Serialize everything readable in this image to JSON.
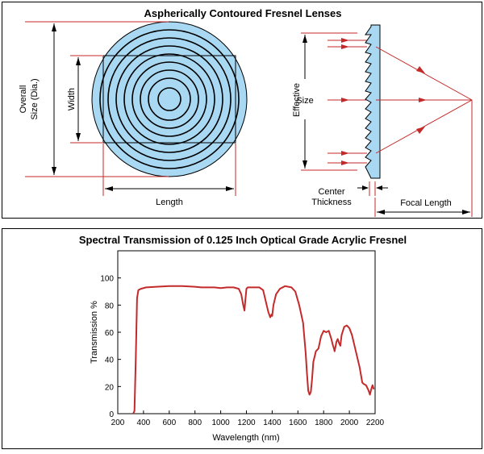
{
  "top": {
    "title": "Aspherically Contoured Fresnel Lenses",
    "labels": {
      "overall_size_line1": "Overall",
      "overall_size_line2": "Size  (Dia.)",
      "width": "Width",
      "length": "Length",
      "effective_line1": "Effective",
      "effective_line2": "Size",
      "center_line1": "Center",
      "center_line2": "Thickness",
      "focal_length": "Focal Length"
    },
    "colors": {
      "lens_fill": "#a9d8f2",
      "ring_stroke": "#000000",
      "dimension_red": "#c42a2a",
      "ray_red": "#c42a2a"
    }
  },
  "bottom": {
    "title": "Spectral Transmission of 0.125 Inch Optical Grade Acrylic Fresnel"
  },
  "chart_data": {
    "type": "line",
    "title": "Spectral Transmission of 0.125 Inch Optical Grade Acrylic Fresnel",
    "xlabel": "Wavelength (nm)",
    "ylabel": "Transmission %",
    "xlim": [
      200,
      2200
    ],
    "ylim": [
      0,
      120
    ],
    "xticks": [
      200,
      400,
      600,
      800,
      1000,
      1200,
      1400,
      1600,
      1800,
      2000,
      2200
    ],
    "yticks": [
      0,
      20,
      40,
      60,
      80,
      100
    ],
    "grid": false,
    "color": "#c42a2a",
    "series": [
      {
        "x": [
          320,
          330,
          340,
          350,
          360,
          380,
          420,
          500,
          600,
          700,
          800,
          850,
          900,
          950,
          1000,
          1050,
          1100,
          1140,
          1160,
          1175,
          1185,
          1190,
          1200,
          1210,
          1230,
          1260,
          1300,
          1330,
          1350,
          1370,
          1385,
          1395,
          1400,
          1410,
          1430,
          1460,
          1500,
          1550,
          1580,
          1610,
          1640,
          1660,
          1670,
          1680,
          1690,
          1700,
          1710,
          1720,
          1740,
          1760,
          1780,
          1800,
          1820,
          1840,
          1860,
          1870,
          1880,
          1885,
          1900,
          1910,
          1920,
          1930,
          1940,
          1960,
          1980,
          2000,
          2020,
          2040,
          2060,
          2080,
          2100,
          2110,
          2130,
          2150,
          2160,
          2170,
          2180,
          2190
        ],
        "y": [
          0,
          2,
          40,
          85,
          91,
          92,
          93,
          93.5,
          94,
          94,
          93.5,
          93,
          93,
          93,
          92.5,
          93,
          93,
          92,
          88,
          80,
          76,
          82,
          92,
          93,
          93,
          93,
          93,
          91,
          83,
          75,
          71,
          73,
          72,
          80,
          88,
          92,
          94,
          93,
          90,
          80,
          67,
          45,
          30,
          17,
          14,
          16,
          25,
          38,
          46,
          48,
          57,
          61,
          60,
          61,
          55,
          51,
          48,
          46,
          53,
          55,
          52,
          50,
          58,
          64,
          65,
          63,
          58,
          50,
          42,
          34,
          23,
          22,
          21,
          17,
          14,
          18,
          21,
          18
        ]
      }
    ]
  }
}
